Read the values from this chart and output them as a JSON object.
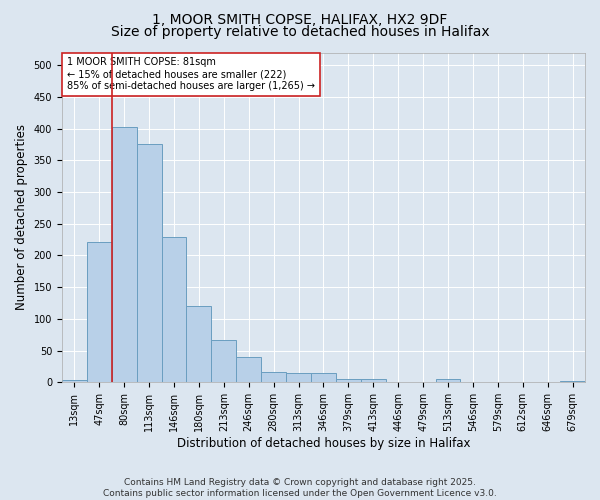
{
  "title_line1": "1, MOOR SMITH COPSE, HALIFAX, HX2 9DF",
  "title_line2": "Size of property relative to detached houses in Halifax",
  "xlabel": "Distribution of detached houses by size in Halifax",
  "ylabel": "Number of detached properties",
  "categories": [
    "13sqm",
    "47sqm",
    "80sqm",
    "113sqm",
    "146sqm",
    "180sqm",
    "213sqm",
    "246sqm",
    "280sqm",
    "313sqm",
    "346sqm",
    "379sqm",
    "413sqm",
    "446sqm",
    "479sqm",
    "513sqm",
    "546sqm",
    "579sqm",
    "612sqm",
    "646sqm",
    "679sqm"
  ],
  "values": [
    3,
    222,
    403,
    376,
    229,
    120,
    67,
    40,
    17,
    15,
    15,
    6,
    5,
    1,
    1,
    6,
    1,
    0,
    0,
    1,
    2
  ],
  "bar_color": "#b8d0e8",
  "bar_edge_color": "#6a9ec0",
  "vline_color": "#cc2222",
  "annotation_text": "1 MOOR SMITH COPSE: 81sqm\n← 15% of detached houses are smaller (222)\n85% of semi-detached houses are larger (1,265) →",
  "annotation_box_color": "#ffffff",
  "annotation_box_edge": "#cc2222",
  "ylim": [
    0,
    520
  ],
  "yticks": [
    0,
    50,
    100,
    150,
    200,
    250,
    300,
    350,
    400,
    450,
    500
  ],
  "background_color": "#dce6f0",
  "plot_bg_color": "#dce6f0",
  "footer": "Contains HM Land Registry data © Crown copyright and database right 2025.\nContains public sector information licensed under the Open Government Licence v3.0.",
  "title_fontsize": 10,
  "subtitle_fontsize": 10,
  "tick_fontsize": 7,
  "label_fontsize": 8.5,
  "footer_fontsize": 6.5,
  "annotation_fontsize": 7,
  "vline_x": 1.5
}
